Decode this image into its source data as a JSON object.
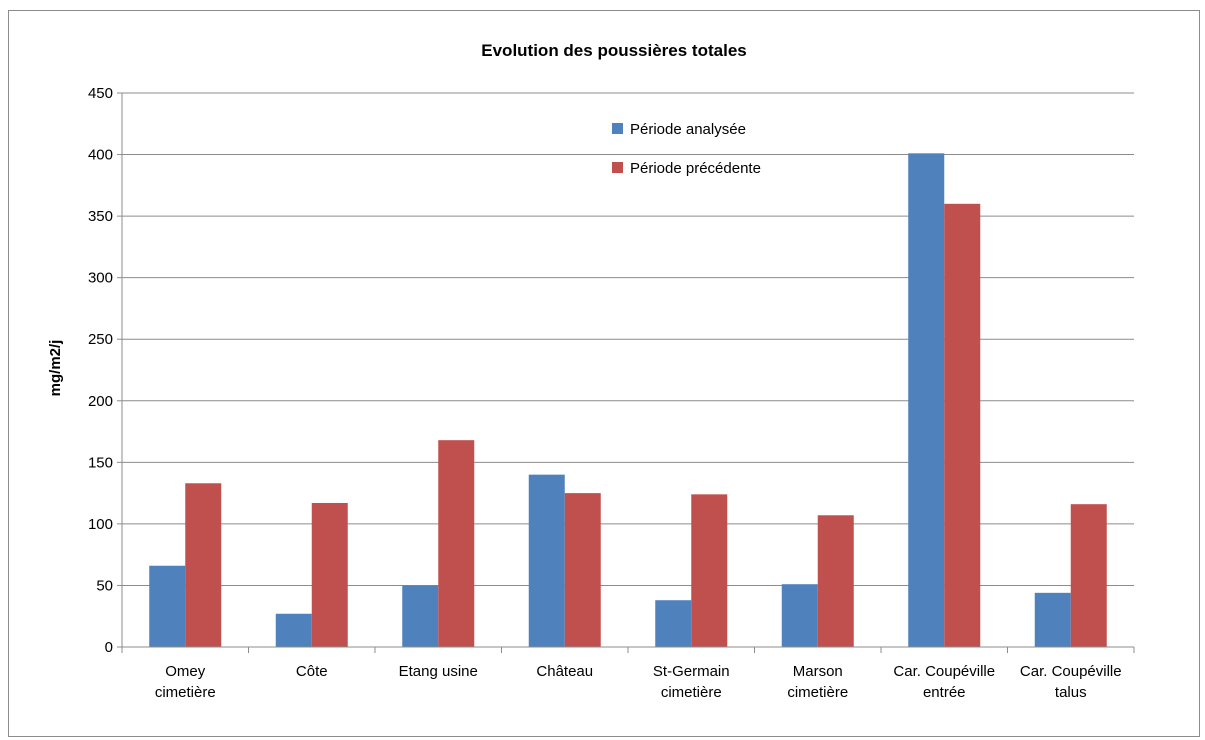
{
  "chart_data": {
    "type": "bar",
    "title": "Evolution des poussières totales",
    "ylabel": "mg/m2/j",
    "xlabel": "",
    "ylim": [
      0,
      450
    ],
    "yticks": [
      0,
      50,
      100,
      150,
      200,
      250,
      300,
      350,
      400,
      450
    ],
    "grid": true,
    "legend_position": "top-center",
    "categories": [
      [
        "Omey",
        "cimetière"
      ],
      [
        "Côte"
      ],
      [
        "Etang usine"
      ],
      [
        "Château"
      ],
      [
        "St-Germain",
        "cimetière"
      ],
      [
        "Marson",
        "cimetière"
      ],
      [
        "Car. Coupéville",
        "entrée"
      ],
      [
        "Car. Coupéville",
        "talus"
      ]
    ],
    "series": [
      {
        "name": "Période analysée",
        "color": "#4f81bd",
        "values": [
          66,
          27,
          50,
          140,
          38,
          51,
          401,
          44
        ]
      },
      {
        "name": "Période précédente",
        "color": "#c0504d",
        "values": [
          133,
          117,
          168,
          125,
          124,
          107,
          360,
          116
        ]
      }
    ]
  }
}
